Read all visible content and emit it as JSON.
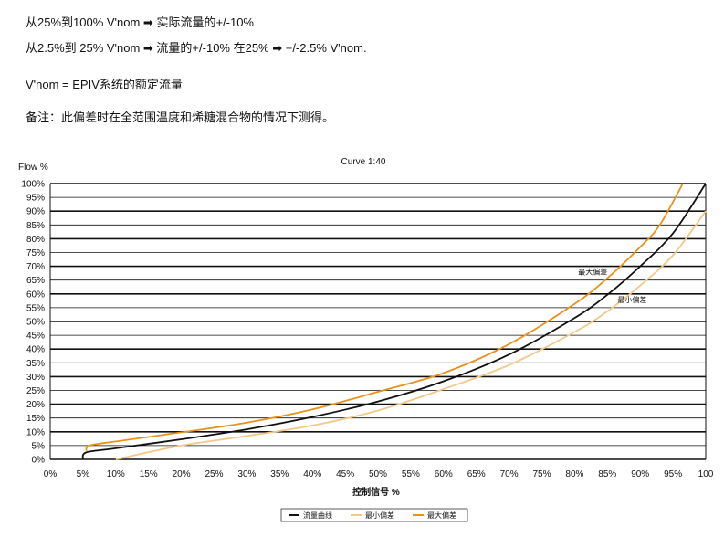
{
  "notes": {
    "line1": "从25%到100% V'nom ➡ 实际流量的+/-10%",
    "line2": "从2.5%到 25% V'nom ➡ 流量的+/-10% 在25% ➡ +/-2.5% V'nom.",
    "line3": "V'nom =  EPIV系统的额定流量",
    "line4": "备注：此偏差时在全范围温度和烯糖混合物的情况下测得。"
  },
  "chart_data": {
    "type": "line",
    "title": "Curve 1:40",
    "ylabel": "Flow %",
    "xlabel": "控制信号 %",
    "xlim": [
      0,
      100
    ],
    "ylim": [
      0,
      100
    ],
    "x_ticks": [
      "0%",
      "5%",
      "10%",
      "15%",
      "20%",
      "25%",
      "30%",
      "35%",
      "40%",
      "45%",
      "50%",
      "55%",
      "60%",
      "65%",
      "70%",
      "75%",
      "80%",
      "85%",
      "90%",
      "95%",
      "100"
    ],
    "y_ticks": [
      "0%",
      "5%",
      "10%",
      "15%",
      "20%",
      "25%",
      "30%",
      "35%",
      "40%",
      "45%",
      "50%",
      "55%",
      "60%",
      "65%",
      "70%",
      "75%",
      "80%",
      "85%",
      "90%",
      "95%",
      "100%"
    ],
    "grid": true,
    "legend_position": "bottom",
    "annotations": [
      {
        "text": "最大偏差",
        "x": 85,
        "y": 67
      },
      {
        "text": "最小偏差",
        "x": 91,
        "y": 57
      }
    ],
    "series": [
      {
        "name": "流量曲线",
        "color": "#111111",
        "x": [
          5,
          5.5,
          10,
          20,
          30,
          40,
          50,
          60,
          70,
          80,
          85,
          90,
          95,
          100
        ],
        "y": [
          0,
          2.5,
          4,
          7.3,
          10.9,
          15.4,
          21,
          28.3,
          38,
          51.3,
          59.7,
          70,
          82,
          100
        ]
      },
      {
        "name": "最小偏差",
        "color": "#f2c88a",
        "x": [
          10,
          20,
          30,
          40,
          50,
          60,
          70,
          80,
          85,
          90,
          95,
          100
        ],
        "y": [
          0,
          5,
          8.5,
          12.3,
          17.7,
          25.5,
          34.2,
          46.2,
          53.7,
          63,
          74,
          90
        ]
      },
      {
        "name": "最大偏差",
        "color": "#e8921c",
        "x": [
          5.5,
          6,
          10,
          20,
          30,
          40,
          50,
          60,
          70,
          80,
          85,
          90,
          93,
          96.5
        ],
        "y": [
          3,
          5,
          6.5,
          9.8,
          13.3,
          18.1,
          24.5,
          31.3,
          41.8,
          56.4,
          65.7,
          77,
          85,
          100
        ]
      }
    ]
  }
}
